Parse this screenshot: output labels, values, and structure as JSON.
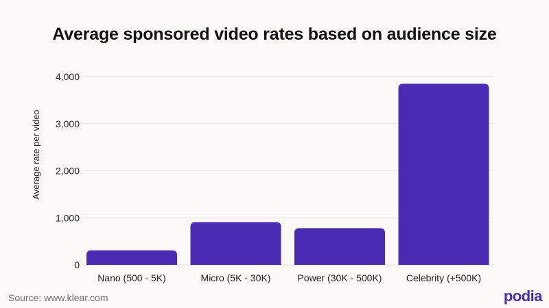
{
  "chart_data": {
    "type": "bar",
    "title": "Average sponsored video rates based on audience size",
    "xlabel": "",
    "ylabel": "Average rate per video",
    "categories": [
      "Nano (500 - 5K)",
      "Micro (5K - 30K)",
      "Power (30K - 500K)",
      "Celebrity (+500K)"
    ],
    "values": [
      310,
      910,
      780,
      3850
    ],
    "ylim": [
      0,
      4000
    ],
    "yticks": [
      0,
      1000,
      2000,
      3000,
      4000
    ],
    "ytick_labels": [
      "0",
      "1,000",
      "2,000",
      "3,000",
      "4,000"
    ],
    "grid": true,
    "bar_color": "#4b2bb4",
    "grid_color": "#e4e2dc"
  },
  "footer": {
    "source": "Source: www.klear.com",
    "brand": "podia"
  }
}
